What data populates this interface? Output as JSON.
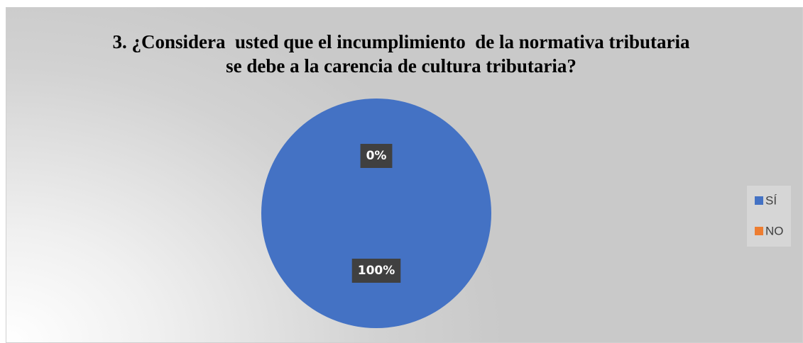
{
  "chart_data": {
    "type": "pie",
    "title": "3. ¿Considera  usted que el incumplimiento  de la normativa tributaria  se debe a la carencia de cultura tributaria?",
    "categories": [
      "SÍ",
      "NO"
    ],
    "values": [
      100,
      0
    ],
    "value_labels": [
      "100%",
      "0%"
    ],
    "colors": [
      "#4472c4",
      "#ed7d31"
    ],
    "legend": "right"
  }
}
